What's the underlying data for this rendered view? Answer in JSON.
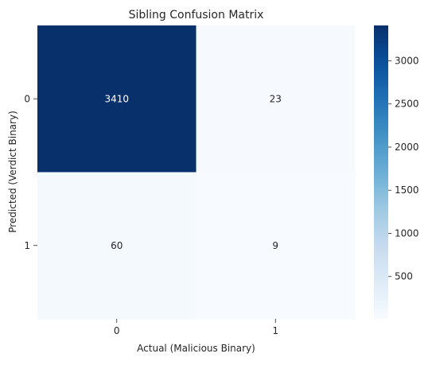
{
  "chart_data": {
    "type": "heatmap",
    "title": "Sibling Confusion Matrix",
    "xlabel": "Actual (Malicious Binary)",
    "ylabel": "Predicted (Verdict Binary)",
    "x_categories": [
      "0",
      "1"
    ],
    "y_categories": [
      "0",
      "1"
    ],
    "values": [
      [
        3410,
        23
      ],
      [
        60,
        9
      ]
    ],
    "colormap": "Blues",
    "color_range": [
      9,
      3410
    ],
    "colorbar_ticks": [
      500,
      1000,
      1500,
      2000,
      2500,
      3000
    ],
    "colorbar_tick_labels": [
      "500",
      "1000",
      "1500",
      "2000",
      "2500",
      "3000"
    ],
    "grid": false,
    "colors": {
      "low": "#f7fbff",
      "high": "#08306b",
      "text_dark": "#262626",
      "text_light": "#ffffff"
    }
  }
}
